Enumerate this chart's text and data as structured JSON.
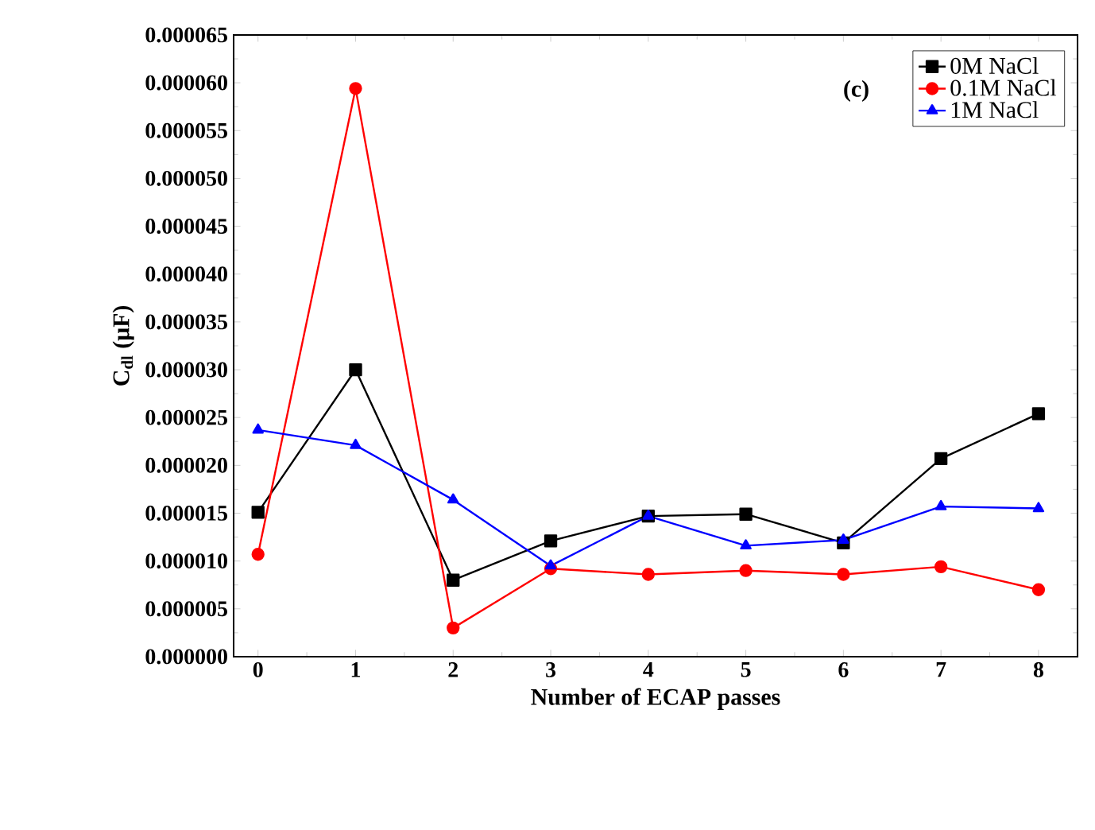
{
  "chart_data": {
    "type": "line",
    "xlabel": "Number of ECAP passes",
    "ylabel": "C$_{dl}$ (μF)",
    "annotations": [
      "(c)"
    ],
    "x": [
      0,
      1,
      2,
      3,
      4,
      5,
      6,
      7,
      8
    ],
    "xlim": [
      -0.25,
      8.4
    ],
    "xticks": [
      0,
      1,
      2,
      3,
      4,
      5,
      6,
      7,
      8
    ],
    "ylim": [
      0,
      6.5e-05
    ],
    "yticks": [
      {
        "value": 0,
        "label": "0.000000"
      },
      {
        "value": 5e-06,
        "label": "0.000005"
      },
      {
        "value": 1e-05,
        "label": "0.000010"
      },
      {
        "value": 1.5e-05,
        "label": "0.000015"
      },
      {
        "value": 2e-05,
        "label": "0.000020"
      },
      {
        "value": 2.5e-05,
        "label": "0.000025"
      },
      {
        "value": 3e-05,
        "label": "0.000030"
      },
      {
        "value": 3.5e-05,
        "label": "0.000035"
      },
      {
        "value": 4e-05,
        "label": "0.000040"
      },
      {
        "value": 4.5e-05,
        "label": "0.000045"
      },
      {
        "value": 5e-05,
        "label": "0.000050"
      },
      {
        "value": 5.5e-05,
        "label": "0.000055"
      },
      {
        "value": 6e-05,
        "label": "0.000060"
      },
      {
        "value": 6.5e-05,
        "label": "0.000065"
      }
    ],
    "legend": "top right",
    "grid": false,
    "line_style": "solid",
    "series": [
      {
        "name": "0M NaCl",
        "color": "#000000",
        "marker": "square",
        "values": [
          1.51e-05,
          3e-05,
          8e-06,
          1.21e-05,
          1.47e-05,
          1.49e-05,
          1.19e-05,
          2.07e-05,
          2.54e-05
        ]
      },
      {
        "name": "0.1M NaCl",
        "color": "#ff0000",
        "marker": "circle",
        "values": [
          1.07e-05,
          5.94e-05,
          3e-06,
          9.2e-06,
          8.6e-06,
          9e-06,
          8.6e-06,
          9.4e-06,
          7e-06
        ]
      },
      {
        "name": "1M NaCl",
        "color": "#0000ff",
        "marker": "triangle",
        "values": [
          2.37e-05,
          2.21e-05,
          1.64e-05,
          9.5e-06,
          1.47e-05,
          1.16e-05,
          1.22e-05,
          1.57e-05,
          1.55e-05
        ]
      }
    ]
  }
}
